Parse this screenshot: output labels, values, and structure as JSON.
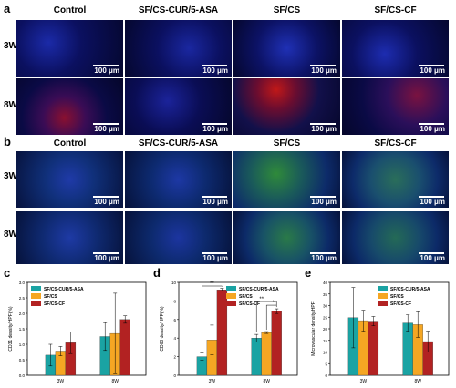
{
  "panel_letters": {
    "a": "a",
    "b": "b",
    "c": "c",
    "d": "d",
    "e": "e"
  },
  "columns": [
    "Control",
    "SF/CS-CUR/5-ASA",
    "SF/CS",
    "SF/CS-CF"
  ],
  "rows": [
    "3W",
    "8W"
  ],
  "scale_label": "100 μm",
  "colors": {
    "SF/CS-CUR/5-ASA": "#1aa3a3",
    "SF/CS": "#f5a623",
    "SF/CS-CF": "#b22222"
  },
  "chart_data": [
    {
      "type": "bar",
      "ylabel": "CD31 density/HPF(%)",
      "categories": [
        "3W",
        "8W"
      ],
      "ylim": [
        0,
        3.0
      ],
      "yticks": [
        "0.0",
        "0.5",
        "1.0",
        "1.5",
        "2.0",
        "2.5",
        "3.0"
      ],
      "series": [
        {
          "name": "SF/CS-CUR/5-ASA",
          "values": [
            0.65,
            1.25
          ],
          "errors": [
            0.35,
            0.45
          ]
        },
        {
          "name": "SF/CS",
          "values": [
            0.78,
            1.35
          ],
          "errors": [
            0.15,
            1.3
          ]
        },
        {
          "name": "SF/CS-CF",
          "values": [
            1.05,
            1.8
          ],
          "errors": [
            0.35,
            0.12
          ]
        }
      ]
    },
    {
      "type": "bar",
      "ylabel": "CD68 density/HPF(%)",
      "categories": [
        "3W",
        "8W"
      ],
      "ylim": [
        0,
        10
      ],
      "yticks": [
        "0",
        "2",
        "4",
        "6",
        "8",
        "10"
      ],
      "series": [
        {
          "name": "SF/CS-CUR/5-ASA",
          "values": [
            2.0,
            4.0
          ],
          "errors": [
            0.4,
            0.4
          ]
        },
        {
          "name": "SF/CS",
          "values": [
            3.8,
            4.6
          ],
          "errors": [
            1.6,
            0.1
          ]
        },
        {
          "name": "SF/CS-CF",
          "values": [
            9.2,
            6.9
          ],
          "errors": [
            0.15,
            0.25
          ]
        }
      ],
      "significance": [
        "**",
        "**",
        "*"
      ]
    },
    {
      "type": "bar",
      "ylabel": "Microvascular density/HPF",
      "categories": [
        "3W",
        "8W"
      ],
      "ylim": [
        0,
        40
      ],
      "yticks": [
        "0",
        "5",
        "10",
        "15",
        "20",
        "25",
        "30",
        "35",
        "40"
      ],
      "series": [
        {
          "name": "SF/CS-CUR/5-ASA",
          "values": [
            24.8,
            22.5
          ],
          "errors": [
            13,
            3.5
          ]
        },
        {
          "name": "SF/CS",
          "values": [
            23.5,
            21.8
          ],
          "errors": [
            4.5,
            5.5
          ]
        },
        {
          "name": "SF/CS-CF",
          "values": [
            23.3,
            14.5
          ],
          "errors": [
            2.0,
            4.5
          ]
        }
      ]
    }
  ]
}
